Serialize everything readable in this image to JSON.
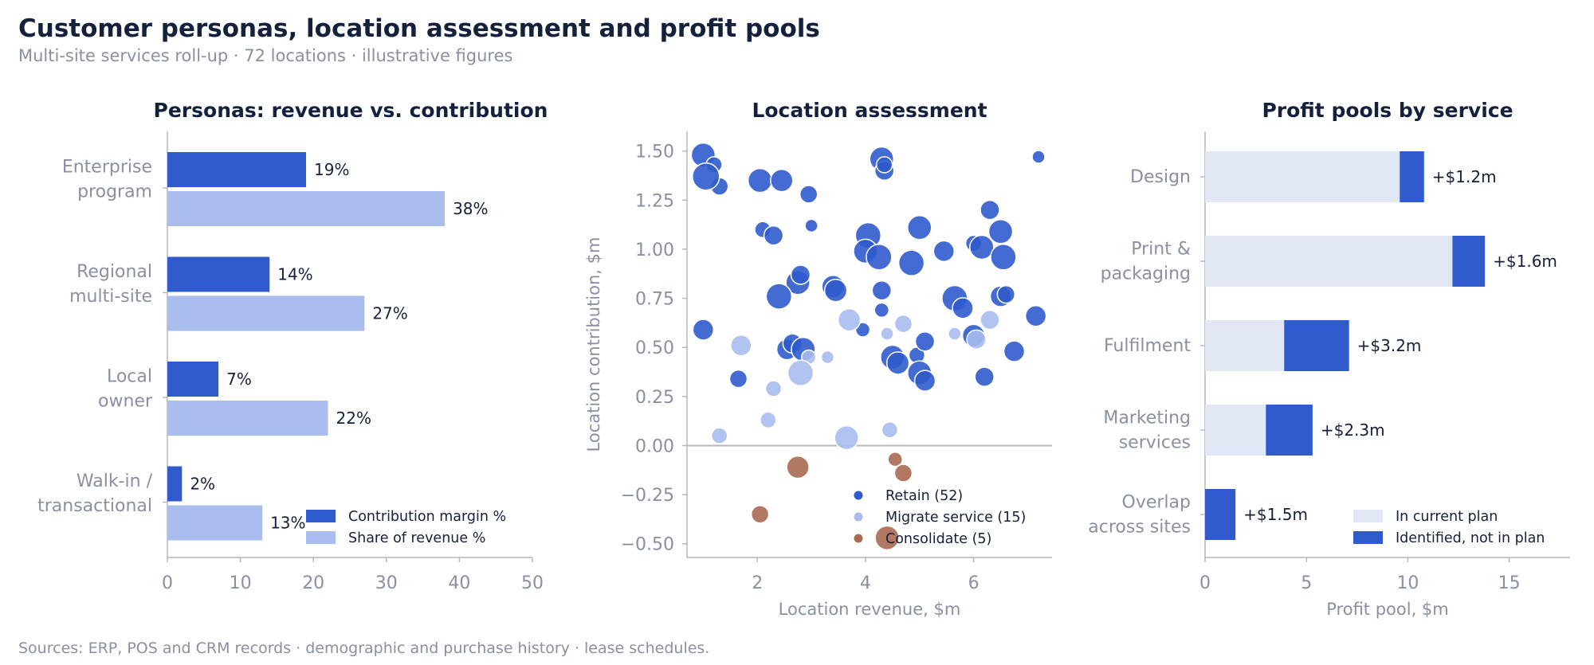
{
  "title": "Customer personas, location assessment and profit pools",
  "subtitle": "Multi-site services roll-up · 72 locations · illustrative figures",
  "footer": "Sources: ERP, POS and CRM records · demographic and purchase history · lease schedules.",
  "colors": {
    "dark": "#2f5bcc",
    "light": "#a9bdef",
    "plan": "#e1e7f4",
    "consolidate": "#a86a50",
    "axis": "#b8b8b8",
    "text": "#14213d",
    "muted": "#8a90a3"
  },
  "chart_data": [
    {
      "type": "bar",
      "orientation": "horizontal",
      "title": "Personas: revenue vs. contribution",
      "categories": [
        "Enterprise\nprogram",
        "Regional\nmulti-site",
        "Local\nowner",
        "Walk-in /\ntransactional"
      ],
      "series": [
        {
          "name": "Contribution margin %",
          "values": [
            19,
            14,
            7,
            2
          ],
          "labels": [
            "19%",
            "14%",
            "7%",
            "2%"
          ]
        },
        {
          "name": "Share of revenue %",
          "values": [
            38,
            27,
            22,
            13
          ],
          "labels": [
            "38%",
            "27%",
            "22%",
            "13%"
          ]
        }
      ],
      "xlim": [
        0,
        50
      ],
      "xticks": [
        "0",
        "10",
        "20",
        "30",
        "40",
        "50"
      ],
      "xlabel": "",
      "legend": "bottom-right"
    },
    {
      "type": "scatter",
      "title": "Location assessment",
      "xlabel": "Location revenue, $m",
      "ylabel": "Location contribution, $m",
      "xlim": [
        0.7,
        7.45
      ],
      "ylim": [
        -0.57,
        1.6
      ],
      "xticks": [
        "2",
        "4",
        "6"
      ],
      "yticks": [
        "−0.50",
        "−0.25",
        "0.00",
        "0.25",
        "0.50",
        "0.75",
        "1.00",
        "1.25",
        "1.50"
      ],
      "legend": "bottom-right",
      "series": [
        {
          "name": "Retain (52)",
          "points": [
            [
              1.0,
              1.48,
              1.1
            ],
            [
              1.2,
              1.43,
              0.6
            ],
            [
              1.3,
              1.32,
              0.7
            ],
            [
              1.05,
              1.37,
              1.3
            ],
            [
              2.05,
              1.35,
              1.1
            ],
            [
              2.45,
              1.35,
              1.0
            ],
            [
              2.95,
              1.28,
              0.7
            ],
            [
              2.1,
              1.1,
              0.6
            ],
            [
              2.3,
              1.07,
              0.8
            ],
            [
              3.0,
              1.12,
              0.4
            ],
            [
              4.3,
              1.46,
              1.1
            ],
            [
              4.35,
              1.4,
              0.8
            ],
            [
              4.35,
              1.43,
              0.6
            ],
            [
              4.05,
              1.07,
              1.2
            ],
            [
              4.0,
              0.99,
              1.1
            ],
            [
              4.25,
              0.96,
              1.2
            ],
            [
              5.0,
              1.11,
              1.1
            ],
            [
              4.85,
              0.93,
              1.2
            ],
            [
              5.45,
              0.99,
              0.9
            ],
            [
              6.0,
              1.03,
              0.6
            ],
            [
              6.15,
              1.01,
              1.1
            ],
            [
              6.5,
              1.09,
              1.1
            ],
            [
              6.55,
              0.96,
              1.2
            ],
            [
              6.3,
              1.2,
              0.8
            ],
            [
              7.2,
              1.47,
              0.4
            ],
            [
              2.75,
              0.83,
              1.1
            ],
            [
              2.8,
              0.87,
              0.8
            ],
            [
              2.4,
              0.76,
              1.2
            ],
            [
              3.4,
              0.81,
              1.0
            ],
            [
              3.45,
              0.79,
              1.0
            ],
            [
              4.3,
              0.79,
              0.8
            ],
            [
              4.3,
              0.69,
              0.5
            ],
            [
              3.95,
              0.59,
              0.5
            ],
            [
              5.65,
              0.75,
              1.2
            ],
            [
              5.8,
              0.7,
              0.9
            ],
            [
              6.5,
              0.76,
              0.9
            ],
            [
              6.6,
              0.77,
              0.7
            ],
            [
              7.15,
              0.66,
              0.9
            ],
            [
              6.0,
              0.56,
              1.0
            ],
            [
              1.0,
              0.59,
              0.9
            ],
            [
              2.55,
              0.49,
              0.9
            ],
            [
              2.65,
              0.52,
              0.8
            ],
            [
              2.85,
              0.49,
              1.1
            ],
            [
              4.5,
              0.45,
              1.1
            ],
            [
              4.6,
              0.42,
              1.0
            ],
            [
              4.95,
              0.46,
              0.6
            ],
            [
              5.0,
              0.37,
              1.1
            ],
            [
              5.1,
              0.53,
              0.8
            ],
            [
              5.1,
              0.33,
              0.9
            ],
            [
              6.75,
              0.48,
              0.9
            ],
            [
              6.2,
              0.35,
              0.8
            ],
            [
              1.65,
              0.34,
              0.7
            ]
          ]
        },
        {
          "name": "Migrate service (15)",
          "points": [
            [
              1.7,
              0.51,
              0.9
            ],
            [
              2.95,
              0.45,
              0.5
            ],
            [
              3.3,
              0.45,
              0.4
            ],
            [
              2.8,
              0.37,
              1.2
            ],
            [
              3.7,
              0.64,
              1.0
            ],
            [
              4.4,
              0.57,
              0.4
            ],
            [
              4.7,
              0.62,
              0.7
            ],
            [
              5.65,
              0.57,
              0.4
            ],
            [
              6.05,
              0.54,
              0.8
            ],
            [
              6.3,
              0.64,
              0.8
            ],
            [
              2.3,
              0.29,
              0.6
            ],
            [
              2.2,
              0.13,
              0.6
            ],
            [
              1.3,
              0.05,
              0.6
            ],
            [
              3.65,
              0.04,
              1.1
            ],
            [
              4.45,
              0.08,
              0.6
            ]
          ]
        },
        {
          "name": "Consolidate (5)",
          "points": [
            [
              2.75,
              -0.11,
              1.0
            ],
            [
              4.55,
              -0.07,
              0.5
            ],
            [
              4.7,
              -0.14,
              0.7
            ],
            [
              2.05,
              -0.35,
              0.7
            ],
            [
              4.4,
              -0.47,
              1.1
            ]
          ]
        }
      ]
    },
    {
      "type": "bar",
      "orientation": "horizontal",
      "stacked": true,
      "title": "Profit pools by service",
      "xlabel": "Profit pool, $m",
      "xlim": [
        0,
        18
      ],
      "xticks": [
        "0",
        "5",
        "10",
        "15"
      ],
      "categories": [
        "Design",
        "Print &\npackaging",
        "Fulfilment",
        "Marketing\nservices",
        "Overlap\nacross sites"
      ],
      "series": [
        {
          "name": "In current plan",
          "values": [
            9.6,
            12.2,
            3.9,
            3.0,
            0
          ]
        },
        {
          "name": "Identified, not in plan",
          "values": [
            1.2,
            1.6,
            3.2,
            2.3,
            1.5
          ],
          "labels": [
            "+$1.2m",
            "+$1.6m",
            "+$3.2m",
            "+$2.3m",
            "+$1.5m"
          ]
        }
      ],
      "legend": "bottom-right"
    }
  ]
}
